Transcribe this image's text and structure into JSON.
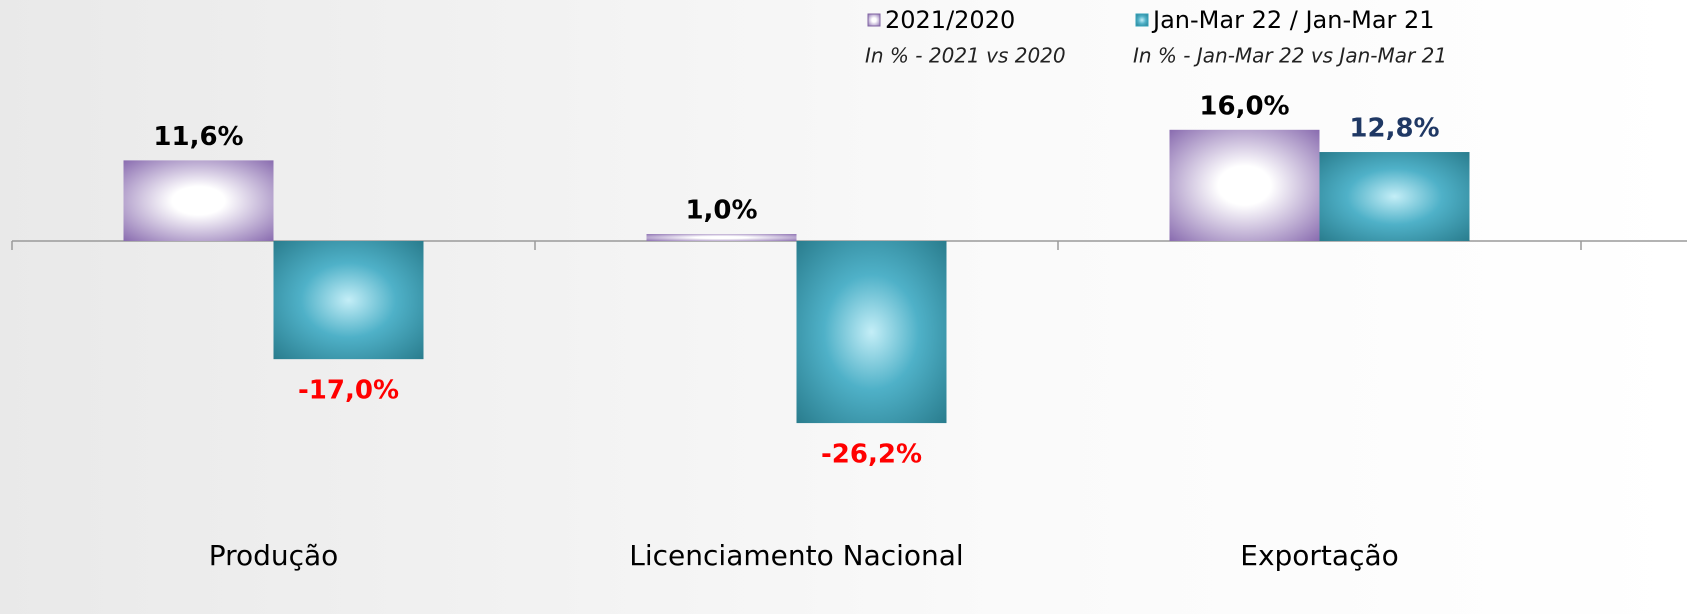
{
  "chart_data": {
    "type": "bar",
    "categories": [
      "Produção",
      "Licenciamento Nacional",
      "Exportação"
    ],
    "series": [
      {
        "name": "2021/2020",
        "legend_note": "In % - 2021 vs 2020",
        "color": "#8064a2",
        "values": [
          11.6,
          1.0,
          16.0
        ],
        "value_labels": [
          "11,6%",
          "1,0%",
          "16,0%"
        ],
        "value_label_colors": [
          "#000000",
          "#000000",
          "#000000"
        ]
      },
      {
        "name": "Jan-Mar 22 / Jan-Mar 21",
        "legend_note": "In % - Jan-Mar 22 vs Jan-Mar 21",
        "color": "#31a0b8",
        "values": [
          -17.0,
          -26.2,
          12.8
        ],
        "value_labels": [
          "-17,0%",
          "-26,2%",
          "12,8%"
        ],
        "value_label_colors": [
          "#ff0000",
          "#ff0000",
          "#1f3864"
        ]
      }
    ]
  }
}
